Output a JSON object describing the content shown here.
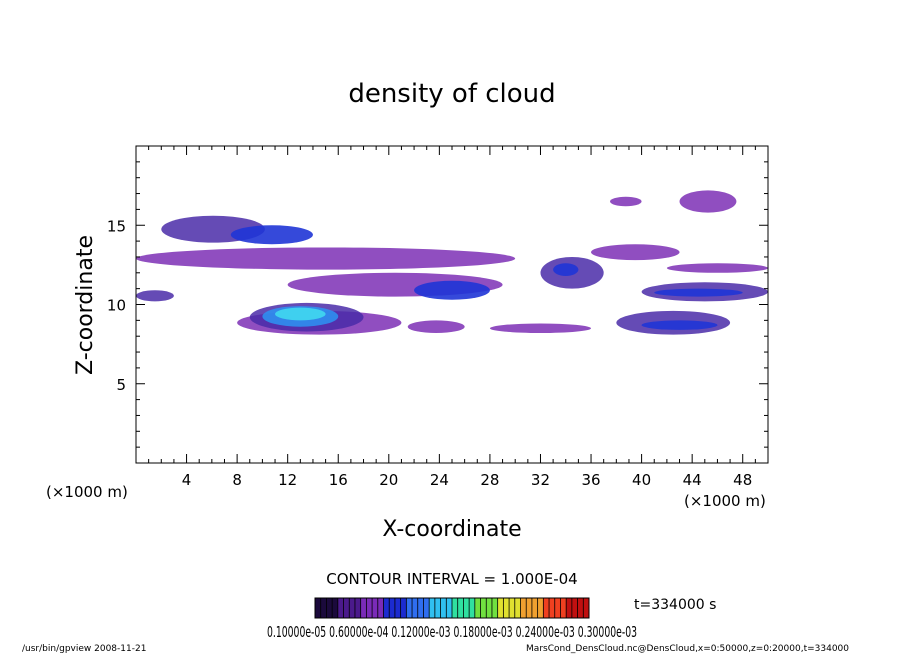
{
  "chart_data": {
    "type": "heatmap",
    "title": "density of cloud",
    "xlabel": "X-coordinate",
    "ylabel": "Z-coordinate",
    "xunit_left": "(×1000 m)",
    "xunit_right": "(×1000 m)",
    "xlim": [
      0,
      50
    ],
    "ylim": [
      0,
      20
    ],
    "xticks": [
      4,
      8,
      12,
      16,
      20,
      24,
      28,
      32,
      36,
      40,
      44,
      48
    ],
    "yticks": [
      5,
      10,
      15
    ],
    "grid": false,
    "contour_interval": "CONTOUR INTERVAL = 1.000E-04",
    "time_label": "t=334000 s",
    "colorbar_labels": "0.10000e-05 0.60000e-04 0.12000e-03 0.18000e-03 0.24000e-03 0.30000e-03",
    "colormap": [
      "#1b0a3c",
      "#4b1a8c",
      "#7a2bb8",
      "#1c2bd0",
      "#2f6ef0",
      "#30c0f0",
      "#30e0a0",
      "#70e040",
      "#e0e030",
      "#f0a030",
      "#f04020",
      "#c01010"
    ],
    "regions": [
      {
        "x": [
          2,
          10.2
        ],
        "z": [
          13.9,
          15.6
        ],
        "level": 2
      },
      {
        "x": [
          7.5,
          14
        ],
        "z": [
          13.8,
          15.0
        ],
        "level": 3
      },
      {
        "x": [
          0,
          30
        ],
        "z": [
          12.2,
          13.6
        ],
        "level": 1
      },
      {
        "x": [
          12,
          29
        ],
        "z": [
          10.5,
          12.0
        ],
        "level": 1
      },
      {
        "x": [
          22,
          28
        ],
        "z": [
          10.3,
          11.5
        ],
        "level": 3
      },
      {
        "x": [
          0,
          3
        ],
        "z": [
          10.2,
          10.9
        ],
        "level": 2
      },
      {
        "x": [
          8,
          21
        ],
        "z": [
          8.1,
          9.6
        ],
        "level": 1
      },
      {
        "x": [
          9,
          18
        ],
        "z": [
          8.3,
          10.1
        ],
        "level": 2
      },
      {
        "x": [
          10,
          16
        ],
        "z": [
          8.6,
          9.9
        ],
        "level": 4
      },
      {
        "x": [
          11,
          15
        ],
        "z": [
          9.0,
          9.8
        ],
        "level": 5
      },
      {
        "x": [
          21.5,
          26
        ],
        "z": [
          8.2,
          9.0
        ],
        "level": 1
      },
      {
        "x": [
          28,
          36
        ],
        "z": [
          8.2,
          8.8
        ],
        "level": 1
      },
      {
        "x": [
          36,
          43
        ],
        "z": [
          12.8,
          13.8
        ],
        "level": 1
      },
      {
        "x": [
          32,
          37
        ],
        "z": [
          11.0,
          13.0
        ],
        "level": 2
      },
      {
        "x": [
          33,
          35
        ],
        "z": [
          11.8,
          12.6
        ],
        "level": 3
      },
      {
        "x": [
          40,
          50
        ],
        "z": [
          10.2,
          11.4
        ],
        "level": 2
      },
      {
        "x": [
          41,
          48
        ],
        "z": [
          10.5,
          11.0
        ],
        "level": 3
      },
      {
        "x": [
          42,
          50
        ],
        "z": [
          12.0,
          12.6
        ],
        "level": 1
      },
      {
        "x": [
          38,
          47
        ],
        "z": [
          8.1,
          9.6
        ],
        "level": 2
      },
      {
        "x": [
          40,
          46
        ],
        "z": [
          8.4,
          9.0
        ],
        "level": 3
      },
      {
        "x": [
          43,
          47.5
        ],
        "z": [
          15.8,
          17.2
        ],
        "level": 1
      },
      {
        "x": [
          37.5,
          40
        ],
        "z": [
          16.2,
          16.8
        ],
        "level": 1
      }
    ]
  },
  "footer": {
    "program": "/usr/bin/gpview   2008-11-21",
    "source": "MarsCond_DensCloud.nc@DensCloud,x=0:50000,z=0:20000,t=334000"
  }
}
